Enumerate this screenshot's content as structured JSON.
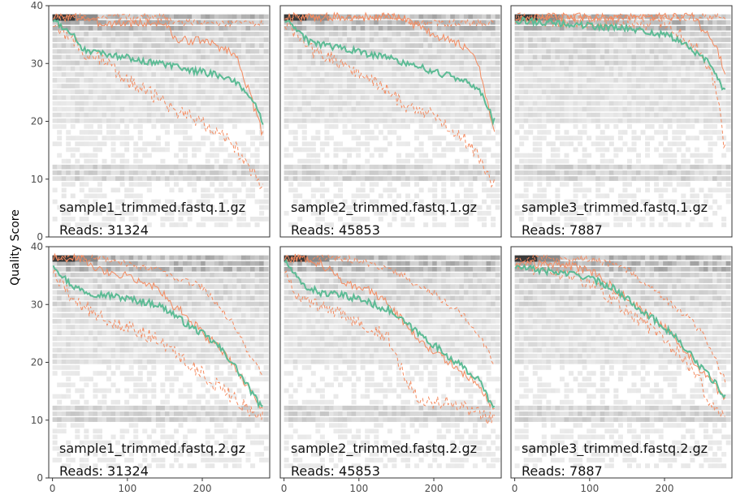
{
  "chart_data": {
    "type": "line",
    "ylabel": "Quality Score",
    "xlabel": "",
    "xlim": [
      -5,
      290
    ],
    "ylim": [
      0,
      40
    ],
    "x_ticks": [
      0,
      100,
      200
    ],
    "y_ticks": [
      0,
      10,
      20,
      30,
      40
    ],
    "grid": false,
    "colors": {
      "mean": "#5dbb95",
      "quartile": "#f48a5f",
      "frame": "#333333"
    },
    "panels": [
      {
        "title": "sample1_trimmed.fastq.1.gz",
        "reads_label": "Reads:  31324",
        "mean": [
          [
            1,
            37.5
          ],
          [
            10,
            36.8
          ],
          [
            20,
            35.5
          ],
          [
            30,
            34.5
          ],
          [
            40,
            32.5
          ],
          [
            60,
            32.0
          ],
          [
            80,
            31.5
          ],
          [
            100,
            31.0
          ],
          [
            120,
            30.5
          ],
          [
            140,
            30.0
          ],
          [
            160,
            29.5
          ],
          [
            180,
            29.0
          ],
          [
            200,
            28.5
          ],
          [
            220,
            28.0
          ],
          [
            240,
            27.0
          ],
          [
            260,
            25.0
          ],
          [
            270,
            23.5
          ],
          [
            280,
            20.0
          ]
        ],
        "median": [
          [
            1,
            38
          ],
          [
            40,
            38
          ],
          [
            60,
            37
          ],
          [
            150,
            37
          ],
          [
            165,
            34
          ],
          [
            180,
            34
          ],
          [
            200,
            34
          ],
          [
            220,
            33
          ],
          [
            240,
            32
          ],
          [
            250,
            30
          ],
          [
            260,
            26
          ],
          [
            270,
            22
          ],
          [
            280,
            18
          ]
        ],
        "q25": [
          [
            1,
            37
          ],
          [
            20,
            35
          ],
          [
            40,
            32
          ],
          [
            60,
            31
          ],
          [
            80,
            29
          ],
          [
            100,
            27
          ],
          [
            120,
            26
          ],
          [
            140,
            24
          ],
          [
            160,
            22
          ],
          [
            180,
            21
          ],
          [
            200,
            20
          ],
          [
            220,
            18
          ],
          [
            240,
            16
          ],
          [
            260,
            13
          ],
          [
            280,
            8
          ]
        ],
        "q75": [
          [
            1,
            38
          ],
          [
            150,
            38
          ],
          [
            160,
            37
          ],
          [
            280,
            37
          ]
        ]
      },
      {
        "title": "sample2_trimmed.fastq.1.gz",
        "reads_label": "Reads:  45853",
        "mean": [
          [
            1,
            37.5
          ],
          [
            10,
            36.5
          ],
          [
            20,
            35.5
          ],
          [
            30,
            34
          ],
          [
            40,
            33.5
          ],
          [
            60,
            33
          ],
          [
            80,
            32.5
          ],
          [
            100,
            32
          ],
          [
            120,
            31.5
          ],
          [
            140,
            31
          ],
          [
            160,
            30
          ],
          [
            180,
            29.5
          ],
          [
            200,
            28.5
          ],
          [
            220,
            28
          ],
          [
            240,
            27
          ],
          [
            260,
            25.5
          ],
          [
            270,
            23
          ],
          [
            280,
            20
          ]
        ],
        "median": [
          [
            1,
            38
          ],
          [
            160,
            38
          ],
          [
            170,
            37
          ],
          [
            200,
            35
          ],
          [
            220,
            34
          ],
          [
            240,
            33
          ],
          [
            260,
            30
          ],
          [
            280,
            18
          ]
        ],
        "q25": [
          [
            1,
            37
          ],
          [
            40,
            32
          ],
          [
            60,
            31
          ],
          [
            80,
            30
          ],
          [
            100,
            28
          ],
          [
            120,
            27
          ],
          [
            140,
            25
          ],
          [
            160,
            23
          ],
          [
            180,
            22
          ],
          [
            200,
            21
          ],
          [
            220,
            19
          ],
          [
            240,
            17
          ],
          [
            260,
            14
          ],
          [
            280,
            9
          ]
        ],
        "q75": [
          [
            1,
            38
          ],
          [
            160,
            38
          ],
          [
            170,
            37
          ],
          [
            280,
            37
          ]
        ]
      },
      {
        "title": "sample3_trimmed.fastq.1.gz",
        "reads_label": "Reads:  7887",
        "mean": [
          [
            1,
            37.5
          ],
          [
            50,
            37
          ],
          [
            100,
            36.5
          ],
          [
            150,
            36
          ],
          [
            200,
            35
          ],
          [
            220,
            34
          ],
          [
            240,
            32
          ],
          [
            260,
            30
          ],
          [
            270,
            28
          ],
          [
            280,
            25
          ]
        ],
        "median": [
          [
            1,
            38
          ],
          [
            240,
            38
          ],
          [
            250,
            36
          ],
          [
            260,
            35
          ],
          [
            270,
            33
          ],
          [
            280,
            28
          ]
        ],
        "q25": [
          [
            1,
            37.5
          ],
          [
            200,
            37
          ],
          [
            220,
            35
          ],
          [
            240,
            33
          ],
          [
            260,
            29
          ],
          [
            270,
            25
          ],
          [
            280,
            15
          ]
        ],
        "q75": [
          [
            1,
            38
          ],
          [
            280,
            38
          ]
        ]
      },
      {
        "title": "sample1_trimmed.fastq.2.gz",
        "reads_label": "Reads:  31324",
        "mean": [
          [
            1,
            37
          ],
          [
            10,
            35.5
          ],
          [
            20,
            34
          ],
          [
            30,
            33
          ],
          [
            50,
            32
          ],
          [
            80,
            31.5
          ],
          [
            100,
            31
          ],
          [
            120,
            30.5
          ],
          [
            140,
            30
          ],
          [
            160,
            28.5
          ],
          [
            180,
            26.5
          ],
          [
            200,
            25
          ],
          [
            220,
            23
          ],
          [
            240,
            20
          ],
          [
            260,
            16
          ],
          [
            280,
            12
          ]
        ],
        "median": [
          [
            1,
            38
          ],
          [
            40,
            38
          ],
          [
            60,
            36
          ],
          [
            100,
            35
          ],
          [
            140,
            33
          ],
          [
            160,
            30
          ],
          [
            180,
            28
          ],
          [
            200,
            25
          ],
          [
            220,
            23
          ],
          [
            240,
            20
          ],
          [
            260,
            16
          ],
          [
            280,
            12
          ]
        ],
        "q25": [
          [
            1,
            36
          ],
          [
            20,
            32
          ],
          [
            40,
            30
          ],
          [
            60,
            28
          ],
          [
            80,
            27
          ],
          [
            100,
            26
          ],
          [
            120,
            25
          ],
          [
            140,
            24
          ],
          [
            160,
            22
          ],
          [
            180,
            20
          ],
          [
            200,
            18
          ],
          [
            220,
            16
          ],
          [
            240,
            14
          ],
          [
            260,
            12
          ],
          [
            280,
            11
          ]
        ],
        "q75": [
          [
            1,
            38
          ],
          [
            60,
            38
          ],
          [
            100,
            37
          ],
          [
            140,
            36
          ],
          [
            160,
            35
          ],
          [
            180,
            34
          ],
          [
            200,
            33
          ],
          [
            220,
            30
          ],
          [
            240,
            27
          ],
          [
            260,
            22
          ],
          [
            280,
            18
          ]
        ]
      },
      {
        "title": "sample2_trimmed.fastq.2.gz",
        "reads_label": "Reads:  45853",
        "mean": [
          [
            1,
            37.5
          ],
          [
            10,
            36
          ],
          [
            20,
            34
          ],
          [
            30,
            33
          ],
          [
            50,
            32
          ],
          [
            80,
            31.5
          ],
          [
            100,
            31
          ],
          [
            120,
            30
          ],
          [
            140,
            29
          ],
          [
            160,
            27
          ],
          [
            180,
            25
          ],
          [
            200,
            23
          ],
          [
            220,
            21
          ],
          [
            240,
            19
          ],
          [
            260,
            17
          ],
          [
            280,
            12
          ]
        ],
        "median": [
          [
            1,
            38
          ],
          [
            30,
            38
          ],
          [
            50,
            37
          ],
          [
            80,
            34
          ],
          [
            100,
            33
          ],
          [
            120,
            32
          ],
          [
            140,
            30
          ],
          [
            160,
            27
          ],
          [
            180,
            24
          ],
          [
            200,
            22
          ],
          [
            220,
            20
          ],
          [
            240,
            18
          ],
          [
            260,
            16
          ],
          [
            280,
            12
          ]
        ],
        "q25": [
          [
            1,
            36
          ],
          [
            20,
            31
          ],
          [
            40,
            30
          ],
          [
            60,
            29
          ],
          [
            80,
            28
          ],
          [
            100,
            27
          ],
          [
            120,
            26
          ],
          [
            140,
            24
          ],
          [
            160,
            18
          ],
          [
            180,
            14
          ],
          [
            200,
            13
          ],
          [
            220,
            13
          ],
          [
            240,
            12
          ],
          [
            260,
            11
          ],
          [
            280,
            10
          ]
        ],
        "q75": [
          [
            1,
            38
          ],
          [
            80,
            38
          ],
          [
            120,
            37
          ],
          [
            140,
            36
          ],
          [
            160,
            35
          ],
          [
            180,
            33
          ],
          [
            200,
            32
          ],
          [
            220,
            30
          ],
          [
            240,
            28
          ],
          [
            260,
            25
          ],
          [
            280,
            20
          ]
        ]
      },
      {
        "title": "sample3_trimmed.fastq.2.gz",
        "reads_label": "Reads:  7887",
        "mean": [
          [
            1,
            36.5
          ],
          [
            30,
            36
          ],
          [
            60,
            35.5
          ],
          [
            90,
            35
          ],
          [
            110,
            34
          ],
          [
            130,
            33
          ],
          [
            150,
            31
          ],
          [
            170,
            29
          ],
          [
            190,
            27
          ],
          [
            210,
            25
          ],
          [
            230,
            22
          ],
          [
            250,
            19
          ],
          [
            270,
            16
          ],
          [
            280,
            14
          ]
        ],
        "median": [
          [
            1,
            37
          ],
          [
            60,
            37
          ],
          [
            100,
            36
          ],
          [
            120,
            34
          ],
          [
            140,
            32
          ],
          [
            160,
            30
          ],
          [
            180,
            28
          ],
          [
            200,
            26
          ],
          [
            220,
            23
          ],
          [
            240,
            20
          ],
          [
            260,
            17
          ],
          [
            280,
            14
          ]
        ],
        "q25": [
          [
            1,
            37
          ],
          [
            40,
            36
          ],
          [
            80,
            35
          ],
          [
            110,
            33
          ],
          [
            140,
            30
          ],
          [
            170,
            27
          ],
          [
            200,
            24
          ],
          [
            230,
            20
          ],
          [
            250,
            16
          ],
          [
            265,
            12
          ],
          [
            280,
            10
          ]
        ],
        "q75": [
          [
            1,
            38
          ],
          [
            100,
            38
          ],
          [
            130,
            37
          ],
          [
            150,
            36
          ],
          [
            170,
            34
          ],
          [
            190,
            32
          ],
          [
            210,
            30
          ],
          [
            230,
            28
          ],
          [
            250,
            25
          ],
          [
            270,
            20
          ],
          [
            280,
            17
          ]
        ]
      }
    ]
  }
}
